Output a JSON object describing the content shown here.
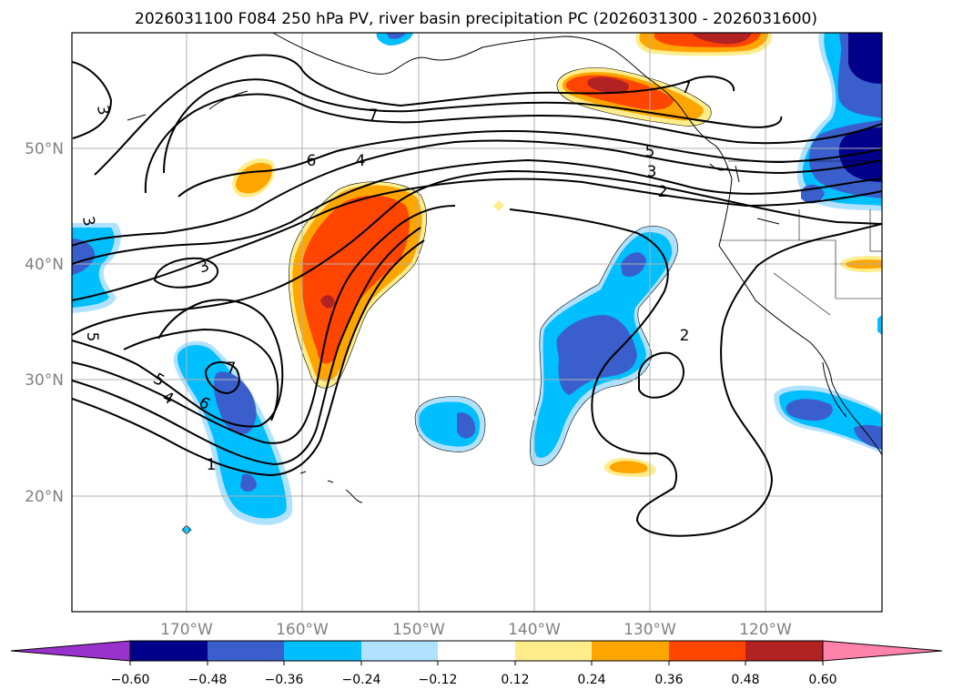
{
  "title": "2026031100 F084 250 hPa PV, river basin precipitation PC (2026031300 - 2026031600)",
  "map": {
    "lat_labels": [
      "50°N",
      "40°N",
      "30°N",
      "20°N"
    ],
    "lon_labels": [
      "170°W",
      "160°W",
      "150°W",
      "140°W",
      "130°W",
      "120°W"
    ],
    "contour_labels": [
      "3",
      "7",
      "6",
      "4",
      "5",
      "3",
      "2",
      "3",
      "3",
      "5",
      "5",
      "4",
      "6",
      "7",
      "1",
      "2",
      "7"
    ]
  },
  "colorbar": {
    "ticks": [
      "−0.60",
      "−0.48",
      "−0.36",
      "−0.24",
      "−0.12",
      "0.12",
      "0.24",
      "0.36",
      "0.48",
      "0.60"
    ],
    "colors": [
      "#9932cc",
      "#00008b",
      "#3a5fcd",
      "#00bfff",
      "#b0e2ff",
      "#ffffff",
      "#ffec8b",
      "#ffa500",
      "#ff4500",
      "#b22222",
      "#ff82ab"
    ]
  },
  "colors": {
    "grid": "#b0b0b0",
    "label_gray": "#808080",
    "contour": "#000000"
  }
}
